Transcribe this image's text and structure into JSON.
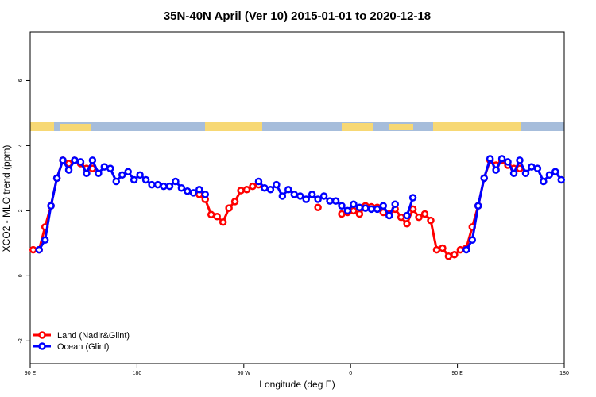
{
  "chart_data": {
    "type": "line",
    "title": "35N-40N April (Ver 10)   2015-01-01 to 2020-12-18",
    "x_label": "Longitude (deg E)",
    "y_label": "XCO2 - MLO trend (ppm)",
    "xlim": [
      90,
      540
    ],
    "ylim": [
      -2.7,
      7.5
    ],
    "xticks": [
      {
        "value": 90,
        "label": "90 E"
      },
      {
        "value": 180,
        "label": "180"
      },
      {
        "value": 270,
        "label": "90 W"
      },
      {
        "value": 360,
        "label": "0"
      },
      {
        "value": 450,
        "label": "90 E"
      },
      {
        "value": 540,
        "label": "180"
      }
    ],
    "yticks": [
      -2,
      0,
      2,
      4,
      6
    ],
    "legend": "bottom-left",
    "x": [
      92.5,
      97.5,
      102.5,
      107.5,
      112.5,
      117.5,
      122.5,
      127.5,
      132.5,
      137.5,
      142.5,
      147.5,
      152.5,
      157.5,
      162.5,
      167.5,
      172.5,
      177.5,
      182.5,
      187.5,
      192.5,
      197.5,
      202.5,
      207.5,
      212.5,
      217.5,
      222.5,
      227.5,
      232.5,
      237.5,
      242.5,
      247.5,
      252.5,
      257.5,
      262.5,
      267.5,
      272.5,
      277.5,
      282.5,
      287.5,
      292.5,
      297.5,
      302.5,
      307.5,
      312.5,
      317.5,
      322.5,
      327.5,
      332.5,
      337.5,
      342.5,
      347.5,
      352.5,
      357.5,
      362.5,
      367.5,
      372.5,
      377.5,
      382.5,
      387.5,
      392.5,
      397.5,
      402.5,
      407.5,
      412.5,
      417.5,
      422.5,
      427.5,
      432.5,
      437.5,
      442.5,
      447.5,
      452.5,
      457.5,
      462.5,
      467.5,
      472.5,
      477.5,
      482.5,
      487.5,
      492.5,
      497.5,
      502.5,
      507.5,
      512.5,
      517.5,
      522.5,
      527.5,
      532.5,
      537.5
    ],
    "series": [
      {
        "name": "Land (Nadir&Glint)",
        "color": "#ff0000",
        "values": [
          0.8,
          0.8,
          1.5,
          2.15,
          3.0,
          3.55,
          3.45,
          3.55,
          3.45,
          3.3,
          3.3,
          null,
          null,
          null,
          null,
          null,
          null,
          null,
          null,
          null,
          null,
          null,
          null,
          null,
          null,
          null,
          null,
          null,
          2.5,
          2.35,
          1.88,
          1.82,
          1.65,
          2.08,
          2.28,
          2.62,
          2.65,
          2.75,
          2.8,
          null,
          null,
          null,
          null,
          null,
          null,
          null,
          null,
          null,
          2.1,
          null,
          null,
          null,
          1.9,
          1.95,
          2.0,
          1.9,
          2.15,
          2.12,
          2.1,
          1.95,
          1.9,
          2.05,
          1.8,
          1.6,
          2.05,
          1.8,
          1.9,
          1.7,
          0.8,
          0.85,
          0.6,
          0.65,
          0.8,
          0.85,
          1.5,
          2.15,
          3.0,
          3.55,
          3.4,
          3.55,
          3.4,
          3.3,
          3.3,
          null,
          null,
          null,
          null,
          null,
          null,
          null
        ]
      },
      {
        "name": "Ocean (Glint)",
        "color": "#0000ff",
        "values": [
          null,
          0.8,
          1.1,
          2.15,
          3.0,
          3.55,
          3.25,
          3.55,
          3.5,
          3.15,
          3.55,
          3.15,
          3.35,
          3.3,
          2.9,
          3.1,
          3.2,
          2.95,
          3.1,
          2.95,
          2.8,
          2.8,
          2.75,
          2.75,
          2.9,
          2.7,
          2.6,
          2.55,
          2.65,
          2.5,
          null,
          null,
          null,
          null,
          null,
          null,
          null,
          null,
          2.9,
          2.7,
          2.65,
          2.8,
          2.45,
          2.65,
          2.5,
          2.45,
          2.35,
          2.5,
          2.35,
          2.45,
          2.3,
          2.3,
          2.15,
          2.0,
          2.2,
          2.1,
          2.08,
          2.05,
          2.05,
          2.15,
          1.85,
          2.2,
          null,
          1.85,
          2.4,
          null,
          null,
          null,
          null,
          null,
          null,
          null,
          null,
          0.8,
          1.1,
          2.15,
          3.0,
          3.6,
          3.25,
          3.6,
          3.5,
          3.15,
          3.55,
          3.15,
          3.35,
          3.3,
          2.9,
          3.1,
          3.2,
          2.95
        ]
      }
    ]
  }
}
